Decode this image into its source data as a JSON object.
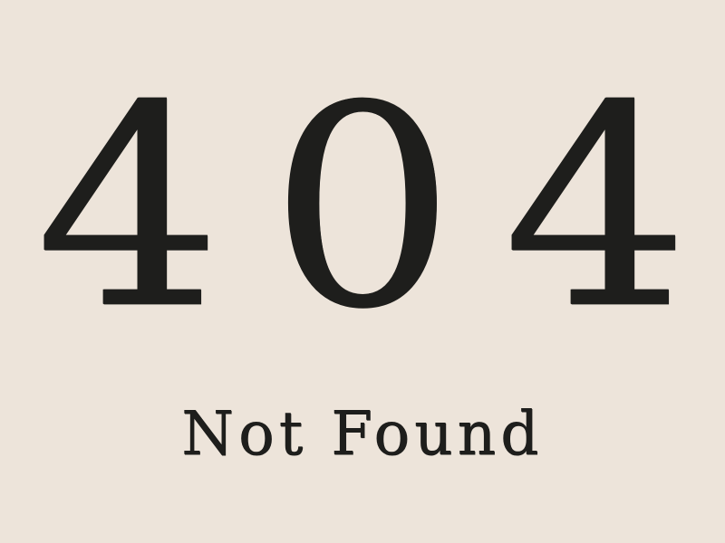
{
  "error": {
    "digits": [
      "4",
      "0",
      "4"
    ],
    "message": "Not Found"
  },
  "colors": {
    "background": "#ede4da",
    "ink": "#1e1e1c"
  }
}
